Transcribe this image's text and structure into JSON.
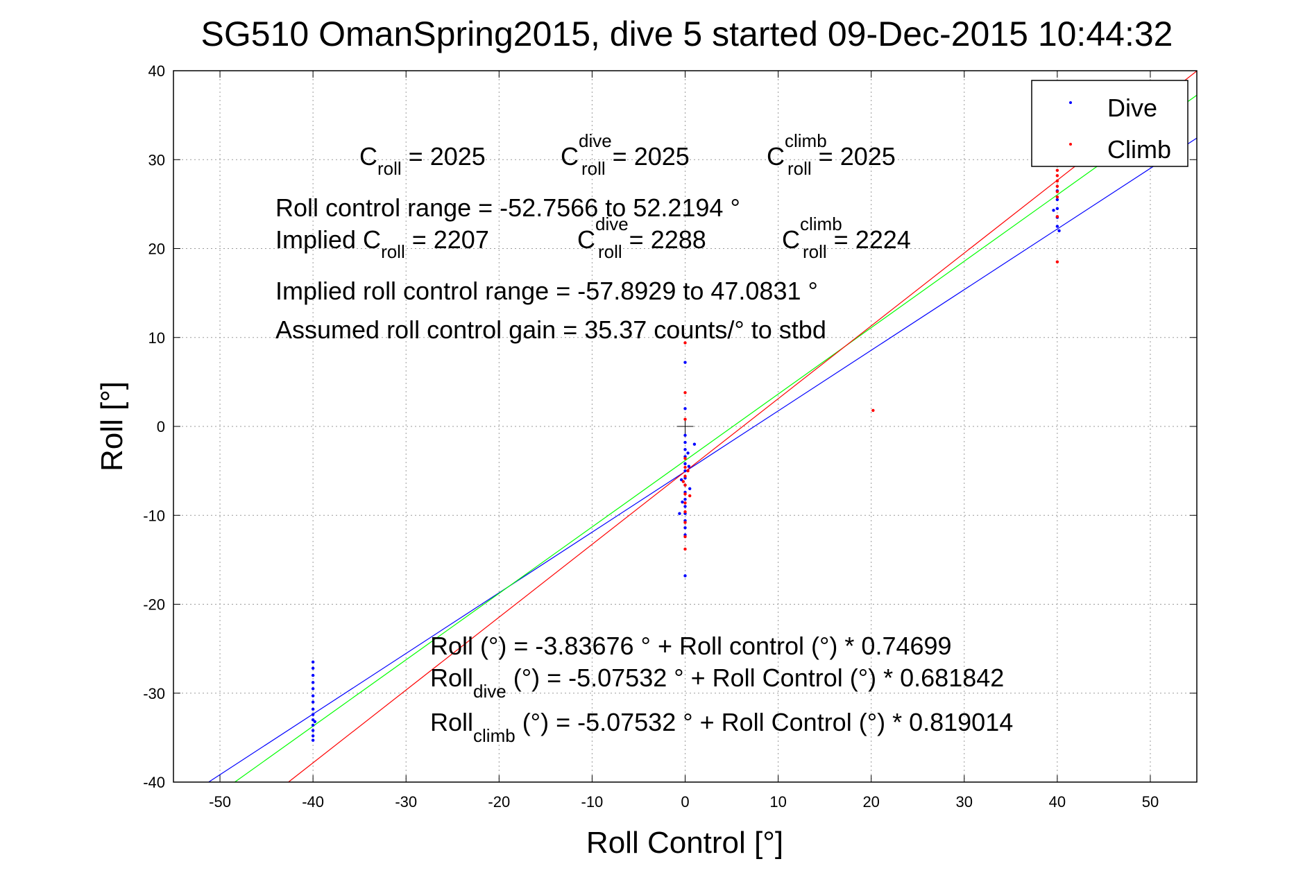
{
  "chart_data": {
    "type": "scatter",
    "title": "SG510 OmanSpring2015, dive 5 started 09-Dec-2015 10:44:32",
    "xlabel": "Roll Control [°]",
    "ylabel": "Roll [°]",
    "xlim": [
      -55,
      55
    ],
    "ylim": [
      -40,
      40
    ],
    "xticks": [
      -50,
      -40,
      -30,
      -20,
      -10,
      0,
      10,
      20,
      30,
      40,
      50
    ],
    "yticks": [
      -40,
      -30,
      -20,
      -10,
      0,
      10,
      20,
      30,
      40
    ],
    "grid": true,
    "legend_position": "top-right",
    "series": [
      {
        "name": "Dive",
        "color": "#0000ff",
        "points": [
          [
            -40,
            -26.5
          ],
          [
            -40,
            -27.2
          ],
          [
            -40,
            -28.0
          ],
          [
            -40,
            -28.8
          ],
          [
            -40,
            -29.5
          ],
          [
            -40,
            -30.3
          ],
          [
            -40,
            -31.0
          ],
          [
            -40,
            -31.8
          ],
          [
            -40,
            -32.4
          ],
          [
            -40,
            -33.0
          ],
          [
            -40,
            -33.6
          ],
          [
            -40,
            -34.2
          ],
          [
            -40,
            -34.8
          ],
          [
            -40,
            -35.3
          ],
          [
            -39.8,
            -33.2
          ],
          [
            0,
            7.2
          ],
          [
            0,
            2.0
          ],
          [
            0,
            -1.0
          ],
          [
            0,
            -1.8
          ],
          [
            0,
            -2.6
          ],
          [
            0,
            -3.4
          ],
          [
            0,
            -4.2
          ],
          [
            0,
            -5.0
          ],
          [
            0,
            -5.8
          ],
          [
            0,
            -6.6
          ],
          [
            0,
            -7.4
          ],
          [
            0,
            -8.2
          ],
          [
            0,
            -9.0
          ],
          [
            0,
            -9.8
          ],
          [
            0,
            -10.6
          ],
          [
            0,
            -11.4
          ],
          [
            0,
            -12.2
          ],
          [
            0,
            -16.8
          ],
          [
            -0.4,
            -6.0
          ],
          [
            0.4,
            -4.5
          ],
          [
            -0.3,
            -8.5
          ],
          [
            0.3,
            -3.0
          ],
          [
            -0.6,
            -9.8
          ],
          [
            1.0,
            -2.0
          ],
          [
            0.5,
            -7.0
          ],
          [
            40,
            26.5
          ],
          [
            40,
            25.5
          ],
          [
            40,
            24.5
          ],
          [
            40,
            23.5
          ],
          [
            40,
            22.5
          ],
          [
            39.6,
            24.3
          ],
          [
            40.2,
            22.0
          ]
        ]
      },
      {
        "name": "Climb",
        "color": "#ff0000",
        "points": [
          [
            0,
            9.4
          ],
          [
            0,
            3.8
          ],
          [
            0,
            0.8
          ],
          [
            0,
            -3.6
          ],
          [
            0,
            -4.6
          ],
          [
            0,
            -5.6
          ],
          [
            0,
            -6.6
          ],
          [
            0,
            -7.6
          ],
          [
            0,
            -8.6
          ],
          [
            0,
            -9.6
          ],
          [
            0,
            -10.8
          ],
          [
            0,
            -12.4
          ],
          [
            0,
            -13.8
          ],
          [
            0.3,
            -5.0
          ],
          [
            0.5,
            -7.8
          ],
          [
            -0.2,
            -6.2
          ],
          [
            20.2,
            1.8
          ],
          [
            40,
            28.8
          ],
          [
            40,
            28.2
          ],
          [
            40,
            27.6
          ],
          [
            40,
            27.0
          ],
          [
            40,
            26.4
          ],
          [
            40,
            25.8
          ],
          [
            40,
            23.6
          ],
          [
            40,
            18.5
          ]
        ]
      }
    ],
    "fit_lines": [
      {
        "color": "#0000ff",
        "intercept": -5.07532,
        "slope": 0.681842
      },
      {
        "color": "#00ff00",
        "intercept": -3.83676,
        "slope": 0.74699
      },
      {
        "color": "#ff0000",
        "intercept": -5.07532,
        "slope": 0.819014
      }
    ],
    "annotations": {
      "c_roll": {
        "main": "C",
        "sub": "roll",
        "rest": " = 2025"
      },
      "c_roll_dive": {
        "main": "C",
        "sup": "dive",
        "sub": "roll",
        "rest": " = 2025"
      },
      "c_roll_climb": {
        "main": "C",
        "sup": "climb",
        "sub": "roll",
        "rest": " = 2025"
      },
      "range": "Roll control range = -52.7566 to 52.2194 °",
      "implied_c_roll": {
        "main": "Implied C",
        "sub": "roll",
        "rest": " = 2207"
      },
      "implied_c_dive": {
        "main": "C",
        "sup": "dive",
        "sub": "roll",
        "rest": " = 2288"
      },
      "implied_c_climb": {
        "main": "C",
        "sup": "climb",
        "sub": "roll",
        "rest": " = 2224"
      },
      "implied_range": "Implied roll control range = -57.8929 to 47.0831 °",
      "gain": "Assumed roll control gain = 35.37 counts/° to stbd",
      "fit_all": "Roll (°) = -3.83676 ° + Roll control (°) * 0.74699",
      "fit_dive": {
        "main": "Roll",
        "sub": "dive",
        "rest": " (°) = -5.07532 ° + Roll Control (°) * 0.681842"
      },
      "fit_climb": {
        "main": "Roll",
        "sub": "climb",
        "rest": " (°) = -5.07532 ° + Roll Control (°) * 0.819014"
      }
    }
  }
}
